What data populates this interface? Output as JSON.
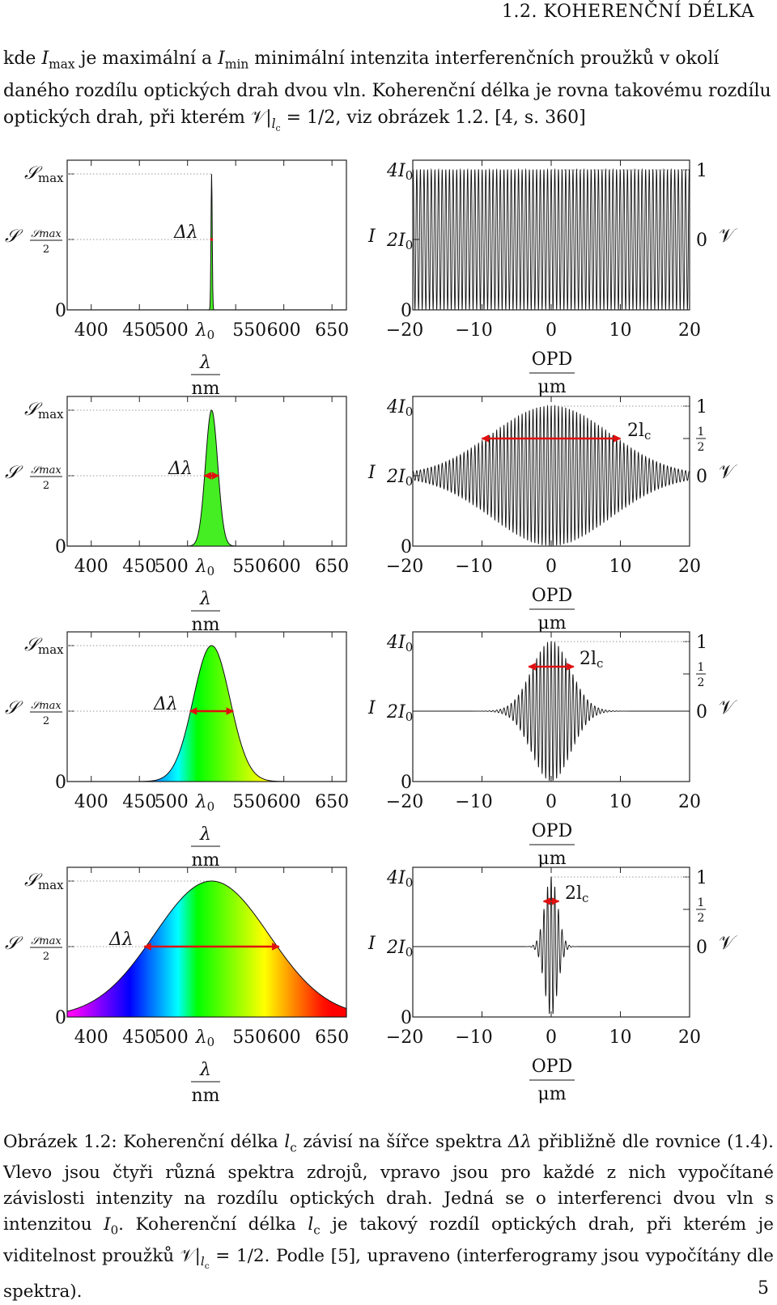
{
  "header": {
    "running_head": "1.2.  KOHERENČNÍ DÉLKA"
  },
  "intro": {
    "p1": "kde ",
    "imax": "I",
    "imax_sub": "max",
    "p2": " je maximální a ",
    "imin": "I",
    "imin_sub": "min",
    "p3": " minimální intenzita interferenčních proužků v okolí daného rozdílu optických drah dvou vln. Koherenční délka je rovna takovému rozdílu optických drah, při kterém ",
    "V": "𝒱",
    "bar": "|",
    "lc": "l",
    "lc_sub": "c",
    "p4": " = 1/2, viz obrázek 1.2. [4, s. 360]"
  },
  "figure": {
    "left_labels": {
      "smax": "𝒮",
      "smax_sub": "max",
      "shalf_num": "𝒮max",
      "shalf_den": "2",
      "zero": "0",
      "side_S": "𝒮"
    },
    "right_labels": {
      "i4": "4I",
      "i4_sub": "0",
      "i2": "2I",
      "i2_sub": "0",
      "zero": "0",
      "side_I": "I",
      "v1": "1",
      "vhalf_num": "1",
      "vhalf_den": "2",
      "v0": "0",
      "side_V": "𝒱"
    },
    "delta_lambda": "Δλ",
    "two_lc": "2l",
    "two_lc_sub": "c",
    "left_xticks": [
      "400",
      "450",
      "500",
      "550",
      "600",
      "650"
    ],
    "lambda0": "λ",
    "lambda0_sub": "0",
    "left_xlabel_num": "λ",
    "left_xlabel_den": "nm",
    "right_xticks": [
      "−20",
      "−10",
      "0",
      "10",
      "20"
    ],
    "right_xlabel_num": "OPD",
    "right_xlabel_den": "μm"
  },
  "chart_data": [
    {
      "type": "area",
      "title": "",
      "xlabel": "λ / nm",
      "ylabel": "𝒮",
      "xlim": [
        375,
        665
      ],
      "center": 525,
      "fwhm": 1.5,
      "colors": [
        "#44ee22"
      ]
    },
    {
      "type": "line",
      "xlabel": "OPD / μm",
      "ylabel": "I",
      "xlim": [
        -20,
        20
      ],
      "ylim": [
        0,
        4
      ],
      "coherence_length": 1000
    },
    {
      "type": "area",
      "xlabel": "λ / nm",
      "ylabel": "𝒮",
      "xlim": [
        375,
        665
      ],
      "center": 525,
      "fwhm": 15,
      "colors": [
        "#44ee22"
      ]
    },
    {
      "type": "line",
      "xlabel": "OPD / μm",
      "ylabel": "I",
      "xlim": [
        -20,
        20
      ],
      "ylim": [
        0,
        4
      ],
      "two_lc": 20
    },
    {
      "type": "area",
      "xlabel": "λ / nm",
      "ylabel": "𝒮",
      "xlim": [
        375,
        665
      ],
      "center": 525,
      "fwhm": 45,
      "colors": [
        "spectrum"
      ]
    },
    {
      "type": "line",
      "xlabel": "OPD / μm",
      "ylabel": "I",
      "xlim": [
        -20,
        20
      ],
      "ylim": [
        0,
        4
      ],
      "two_lc": 6.5
    },
    {
      "type": "area",
      "xlabel": "λ / nm",
      "ylabel": "𝒮",
      "xlim": [
        375,
        665
      ],
      "center": 525,
      "fwhm": 140,
      "colors": [
        "spectrum"
      ]
    },
    {
      "type": "line",
      "xlabel": "OPD / μm",
      "ylabel": "I",
      "xlim": [
        -20,
        20
      ],
      "ylim": [
        0,
        4
      ],
      "two_lc": 2.2
    }
  ],
  "caption": {
    "c1": "Obrázek 1.2: Koherenční délka ",
    "lc": "l",
    "lc_sub": "c",
    "c2": " závisí na šířce spektra ",
    "dl": "Δλ",
    "c3": " přibližně dle rovnice (1.4). Vlevo jsou čtyři různá spektra zdrojů, vpravo jsou pro každé z nich vypočítané závislosti intenzity na rozdílu optických drah. Jedná se o interferenci dvou vln s intenzitou ",
    "i0": "I",
    "i0_sub": "0",
    "c4": ". Koherenční délka ",
    "lc2": "l",
    "lc2_sub": "c",
    "c5": " je takový rozdíl optických drah, při kterém je viditelnost proužků ",
    "V": "𝒱",
    "bar": "|",
    "lc3": "l",
    "lc3_sub": "c",
    "c6": " = 1/2. Podle [5], upraveno (interferogramy jsou vypočítány dle spektra)."
  },
  "page": {
    "number": "5"
  }
}
